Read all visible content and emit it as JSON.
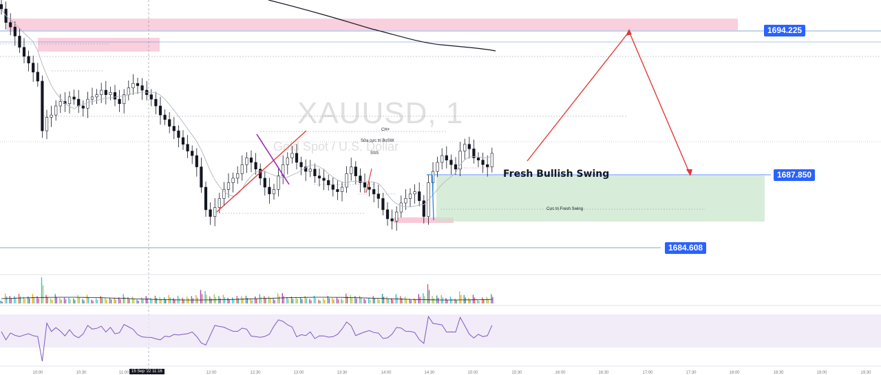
{
  "chart_data": {
    "type": "candlestick",
    "symbol": "XAUUSD, 1",
    "description": "Gold Spot / U.S. Dollar",
    "price_lines": [
      {
        "price": 1694.225,
        "label": "1694.225"
      },
      {
        "price": 1687.85,
        "label": "1687.850"
      },
      {
        "price": 1684.608,
        "label": "1684.608"
      }
    ],
    "annotations": {
      "fresh_bullish_swing": "Fresh Bullish Swing",
      "cuc_tri_fresh_swing": "Cực trị Fresh Swing",
      "ch_plus": "CH+",
      "sua_cuc_tri_bos": "Sửa cực trị BoSW",
      "sss": "SSS"
    },
    "x_ticks": [
      "10:00",
      "10:30",
      "11:00",
      "12:00",
      "12:30",
      "13:00",
      "13:30",
      "14:00",
      "14:30",
      "15:00",
      "15:30",
      "16:00",
      "16:30",
      "17:00",
      "17:30",
      "18:00",
      "18:30",
      "19:00",
      "19:30"
    ],
    "cursor_label": "15 Sep '22  11:16",
    "close_series": [
      1695.2,
      1694.6,
      1694.4,
      1694.0,
      1693.5,
      1693.1,
      1692.8,
      1692.4,
      1692.0,
      1689.8,
      1690.4,
      1690.5,
      1690.9,
      1691.1,
      1691.0,
      1691.3,
      1691.2,
      1690.9,
      1690.8,
      1691.2,
      1691.3,
      1691.4,
      1691.6,
      1691.4,
      1691.5,
      1691.2,
      1691.0,
      1691.4,
      1691.7,
      1691.9,
      1691.8,
      1691.6,
      1691.4,
      1691.2,
      1690.9,
      1690.5,
      1690.3,
      1690.0,
      1689.8,
      1689.5,
      1689.2,
      1688.9,
      1688.7,
      1688.2,
      1687.3,
      1686.3,
      1686.0,
      1686.4,
      1686.8,
      1687.2,
      1687.5,
      1687.7,
      1687.9,
      1688.3,
      1688.6,
      1688.4,
      1688.1,
      1687.7,
      1687.3,
      1687.0,
      1687.2,
      1687.8,
      1688.3,
      1688.6,
      1688.8,
      1688.4,
      1688.2,
      1688.0,
      1688.1,
      1687.8,
      1687.7,
      1687.6,
      1687.4,
      1687.2,
      1687.1,
      1687.3,
      1687.9,
      1688.2,
      1687.8,
      1687.5,
      1687.3,
      1687.2,
      1687.0,
      1686.8,
      1686.3,
      1685.9,
      1685.8,
      1686.2,
      1686.6,
      1686.8,
      1687.0,
      1687.1,
      1686.7,
      1686.0,
      1687.5,
      1688.0,
      1688.4,
      1688.7,
      1688.5,
      1688.3,
      1688.1,
      1688.9,
      1689.2,
      1689.0,
      1688.6,
      1688.5,
      1688.3,
      1688.2,
      1688.8
    ]
  }
}
